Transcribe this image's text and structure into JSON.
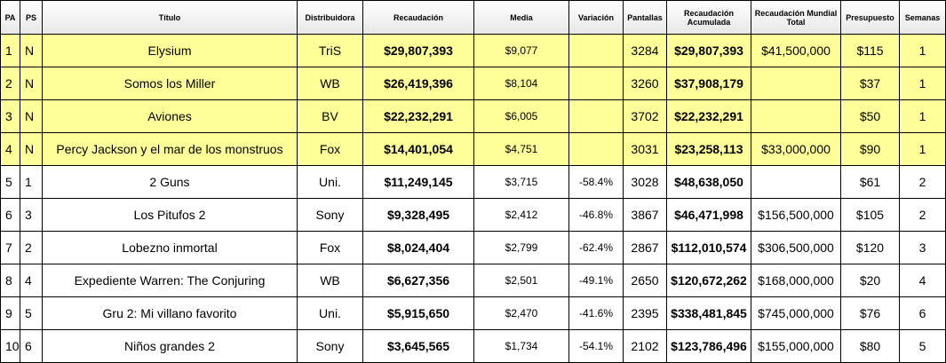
{
  "headers": [
    "PA",
    "PS",
    "Título",
    "Distribuidora",
    "Recaudación",
    "Media",
    "Variación",
    "Pantallas",
    "Recaudación Acumulada",
    "Recaudación Mundial Total",
    "Presupuesto",
    "Semanas"
  ],
  "rows": [
    {
      "pa": "1",
      "ps": "N",
      "titulo": "Elysium",
      "distribuidora": "TriS",
      "recaudacion": "$29,807,393",
      "media": "$9,077",
      "variacion": "",
      "pantallas": "3284",
      "acumulada": "$29,807,393",
      "mundial": "$41,500,000",
      "presupuesto": "$115",
      "semanas": "1",
      "highlight": true
    },
    {
      "pa": "2",
      "ps": "N",
      "titulo": "Somos los Miller",
      "distribuidora": "WB",
      "recaudacion": "$26,419,396",
      "media": "$8,104",
      "variacion": "",
      "pantallas": "3260",
      "acumulada": "$37,908,179",
      "mundial": "",
      "presupuesto": "$37",
      "semanas": "1",
      "highlight": true
    },
    {
      "pa": "3",
      "ps": "N",
      "titulo": "Aviones",
      "distribuidora": "BV",
      "recaudacion": "$22,232,291",
      "media": "$6,005",
      "variacion": "",
      "pantallas": "3702",
      "acumulada": "$22,232,291",
      "mundial": "",
      "presupuesto": "$50",
      "semanas": "1",
      "highlight": true
    },
    {
      "pa": "4",
      "ps": "N",
      "titulo": "Percy Jackson y el mar de los monstruos",
      "distribuidora": "Fox",
      "recaudacion": "$14,401,054",
      "media": "$4,751",
      "variacion": "",
      "pantallas": "3031",
      "acumulada": "$23,258,113",
      "mundial": "$33,000,000",
      "presupuesto": "$90",
      "semanas": "1",
      "highlight": true
    },
    {
      "pa": "5",
      "ps": "1",
      "titulo": "2 Guns",
      "distribuidora": "Uni.",
      "recaudacion": "$11,249,145",
      "media": "$3,715",
      "variacion": "-58.4%",
      "pantallas": "3028",
      "acumulada": "$48,638,050",
      "mundial": "",
      "presupuesto": "$61",
      "semanas": "2",
      "highlight": false
    },
    {
      "pa": "6",
      "ps": "3",
      "titulo": "Los Pitufos 2",
      "distribuidora": "Sony",
      "recaudacion": "$9,328,495",
      "media": "$2,412",
      "variacion": "-46.8%",
      "pantallas": "3867",
      "acumulada": "$46,471,998",
      "mundial": "$156,500,000",
      "presupuesto": "$105",
      "semanas": "2",
      "highlight": false
    },
    {
      "pa": "7",
      "ps": "2",
      "titulo": "Lobezno inmortal",
      "distribuidora": "Fox",
      "recaudacion": "$8,024,404",
      "media": "$2,799",
      "variacion": "-62.4%",
      "pantallas": "2867",
      "acumulada": "$112,010,574",
      "mundial": "$306,500,000",
      "presupuesto": "$120",
      "semanas": "3",
      "highlight": false
    },
    {
      "pa": "8",
      "ps": "4",
      "titulo": "Expediente Warren: The Conjuring",
      "distribuidora": "WB",
      "recaudacion": "$6,627,356",
      "media": "$2,501",
      "variacion": "-49.1%",
      "pantallas": "2650",
      "acumulada": "$120,672,262",
      "mundial": "$168,000,000",
      "presupuesto": "$20",
      "semanas": "4",
      "highlight": false
    },
    {
      "pa": "9",
      "ps": "5",
      "titulo": "Gru 2: Mi villano favorito",
      "distribuidora": "Uni.",
      "recaudacion": "$5,915,650",
      "media": "$2,470",
      "variacion": "-41.6%",
      "pantallas": "2395",
      "acumulada": "$338,481,845",
      "mundial": "$745,000,000",
      "presupuesto": "$76",
      "semanas": "6",
      "highlight": false
    },
    {
      "pa": "10",
      "ps": "6",
      "titulo": "Niños grandes 2",
      "distribuidora": "Sony",
      "recaudacion": "$3,645,565",
      "media": "$1,734",
      "variacion": "-54.1%",
      "pantallas": "2102",
      "acumulada": "$123,786,496",
      "mundial": "$155,000,000",
      "presupuesto": "$80",
      "semanas": "5",
      "highlight": false
    }
  ],
  "colors": {
    "highlight": "#ffff99",
    "header_top": "#ffffff",
    "header_bottom": "#e6e6e6",
    "border": "#000000"
  }
}
